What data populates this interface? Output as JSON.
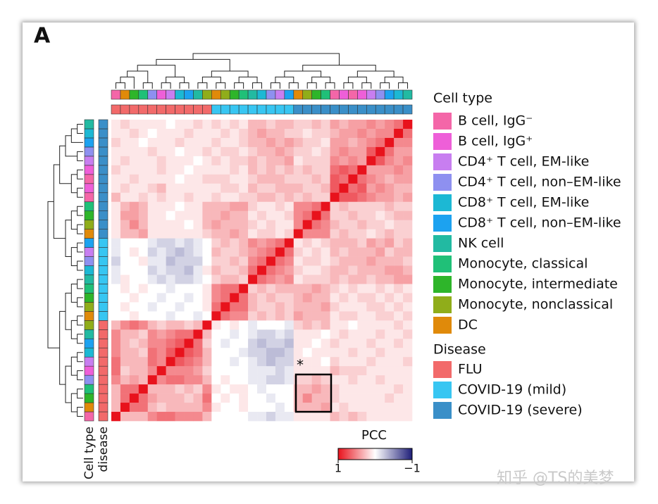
{
  "panel_label": "A",
  "watermark": "知乎 @TS的美梦",
  "chart_data": {
    "type": "heatmap",
    "samples": [
      {
        "cell_type": "B cell, IgG⁻",
        "disease": "FLU"
      },
      {
        "cell_type": "DC",
        "disease": "FLU"
      },
      {
        "cell_type": "Monocyte, intermediate",
        "disease": "FLU"
      },
      {
        "cell_type": "Monocyte, classical",
        "disease": "FLU"
      },
      {
        "cell_type": "CD4⁺ T cell, non–EM-like",
        "disease": "FLU"
      },
      {
        "cell_type": "B cell, IgG⁺",
        "disease": "FLU"
      },
      {
        "cell_type": "CD4⁺ T cell, EM-like",
        "disease": "FLU"
      },
      {
        "cell_type": "CD8⁺ T cell, EM-like",
        "disease": "FLU"
      },
      {
        "cell_type": "CD8⁺ T cell, non–EM-like",
        "disease": "FLU"
      },
      {
        "cell_type": "NK cell",
        "disease": "FLU"
      },
      {
        "cell_type": "Monocyte, nonclassical",
        "disease": "FLU"
      },
      {
        "cell_type": "DC",
        "disease": "COVID-19 (mild)"
      },
      {
        "cell_type": "Monocyte, nonclassical",
        "disease": "COVID-19 (mild)"
      },
      {
        "cell_type": "Monocyte, intermediate",
        "disease": "COVID-19 (mild)"
      },
      {
        "cell_type": "Monocyte, classical",
        "disease": "COVID-19 (mild)"
      },
      {
        "cell_type": "NK cell",
        "disease": "COVID-19 (mild)"
      },
      {
        "cell_type": "CD8⁺ T cell, EM-like",
        "disease": "COVID-19 (mild)"
      },
      {
        "cell_type": "CD4⁺ T cell, non–EM-like",
        "disease": "COVID-19 (mild)"
      },
      {
        "cell_type": "CD4⁺ T cell, EM-like",
        "disease": "COVID-19 (mild)"
      },
      {
        "cell_type": "CD8⁺ T cell, non–EM-like",
        "disease": "COVID-19 (mild)"
      },
      {
        "cell_type": "DC",
        "disease": "COVID-19 (severe)"
      },
      {
        "cell_type": "Monocyte, nonclassical",
        "disease": "COVID-19 (severe)"
      },
      {
        "cell_type": "Monocyte, intermediate",
        "disease": "COVID-19 (severe)"
      },
      {
        "cell_type": "Monocyte, classical",
        "disease": "COVID-19 (severe)"
      },
      {
        "cell_type": "B cell, IgG⁻",
        "disease": "COVID-19 (severe)"
      },
      {
        "cell_type": "B cell, IgG⁺",
        "disease": "COVID-19 (severe)"
      },
      {
        "cell_type": "B cell, IgG⁻",
        "disease": "COVID-19 (severe)"
      },
      {
        "cell_type": "B cell, IgG⁺",
        "disease": "COVID-19 (severe)"
      },
      {
        "cell_type": "CD4⁺ T cell, EM-like",
        "disease": "COVID-19 (severe)"
      },
      {
        "cell_type": "CD4⁺ T cell, non–EM-like",
        "disease": "COVID-19 (severe)"
      },
      {
        "cell_type": "CD8⁺ T cell, non–EM-like",
        "disease": "COVID-19 (severe)"
      },
      {
        "cell_type": "CD8⁺ T cell, EM-like",
        "disease": "COVID-19 (severe)"
      },
      {
        "cell_type": "NK cell",
        "disease": "COVID-19 (severe)"
      }
    ],
    "values": [
      [
        0.1,
        0.2,
        0.1,
        0.1,
        0.1,
        0.1,
        0,
        0.1,
        0.1,
        0.2,
        0.1,
        0.2,
        0.1,
        0.2,
        0.1,
        0.3,
        0.3,
        0.2,
        0.3,
        0.3,
        0.2,
        0.2,
        0.3,
        0.2,
        0.4,
        0.3,
        0.4,
        0.4,
        0.5,
        0.4,
        0.5,
        0.6,
        1
      ],
      [
        0.1,
        0.1,
        0.2,
        0.1,
        0,
        0.1,
        0.1,
        0.1,
        0.2,
        0.1,
        0.1,
        0.1,
        0.2,
        0.1,
        0.2,
        0.3,
        0.4,
        0.3,
        0.3,
        0.2,
        0.2,
        0.1,
        0.2,
        0.2,
        0.3,
        0.4,
        0.4,
        0.5,
        0.4,
        0.5,
        0.5,
        1,
        0.6
      ],
      [
        0.2,
        0.1,
        0.1,
        0,
        0.1,
        0.1,
        0.1,
        0.2,
        0.1,
        0.1,
        0.1,
        0.2,
        0.1,
        0.1,
        0.2,
        0.3,
        0.3,
        0.4,
        0.3,
        0.4,
        0.3,
        0.2,
        0.2,
        0.1,
        0.4,
        0.4,
        0.3,
        0.4,
        0.5,
        0.6,
        1,
        0.5,
        0.5
      ],
      [
        0.1,
        0.1,
        0.1,
        0.1,
        0.2,
        0.1,
        0.1,
        0,
        0.1,
        0.1,
        0.2,
        0.1,
        0.2,
        0.2,
        0.1,
        0.2,
        0.3,
        0.3,
        0.4,
        0.3,
        0.2,
        0.2,
        0.1,
        0.2,
        0.4,
        0.5,
        0.4,
        0.4,
        0.7,
        1,
        0.6,
        0.4,
        0.4
      ],
      [
        0.1,
        0.2,
        0.1,
        0.1,
        0.1,
        0.2,
        0.1,
        0.1,
        0.1,
        0,
        0.1,
        0.2,
        0.1,
        0.2,
        0.2,
        0.3,
        0.2,
        0.3,
        0.3,
        0.4,
        0.1,
        0.2,
        0.2,
        0.2,
        0.5,
        0.4,
        0.5,
        0.4,
        1,
        0.7,
        0.5,
        0.4,
        0.5
      ],
      [
        0.2,
        0.1,
        0.1,
        0.1,
        0.1,
        0.2,
        0.1,
        0.1,
        0,
        0.1,
        0.1,
        0.1,
        0.1,
        0.2,
        0.1,
        0.3,
        0.2,
        0.3,
        0.2,
        0.3,
        0.2,
        0.3,
        0.2,
        0.2,
        0.6,
        0.7,
        0.6,
        1,
        0.4,
        0.4,
        0.4,
        0.5,
        0.4
      ],
      [
        0.1,
        0.1,
        0.2,
        0.1,
        0.1,
        0.1,
        0.1,
        0,
        0.1,
        0.1,
        0.2,
        0.2,
        0.2,
        0.1,
        0.1,
        0.2,
        0.3,
        0.3,
        0.3,
        0.2,
        0.2,
        0.2,
        0.3,
        0.2,
        0.7,
        0.6,
        1,
        0.6,
        0.5,
        0.4,
        0.3,
        0.4,
        0.4
      ],
      [
        0.1,
        0.2,
        0.1,
        0.1,
        0.2,
        0.3,
        0.1,
        0.1,
        0.1,
        0.1,
        0.1,
        0.1,
        0.2,
        0.2,
        0.1,
        0.3,
        0.2,
        0.2,
        0.3,
        0.3,
        0.3,
        0.2,
        0.2,
        0.3,
        0.7,
        1,
        0.6,
        0.7,
        0.4,
        0.5,
        0.4,
        0.3,
        0.3
      ],
      [
        0.3,
        0.1,
        0.1,
        0.2,
        0.1,
        0.2,
        0.1,
        0.1,
        0.2,
        0.1,
        0.1,
        0.2,
        0.1,
        0.1,
        0.2,
        0.2,
        0.3,
        0.3,
        0.2,
        0.3,
        0.2,
        0.3,
        0.2,
        0.2,
        1,
        0.7,
        0.7,
        0.6,
        0.5,
        0.4,
        0.4,
        0.3,
        0.4
      ],
      [
        0.1,
        0.3,
        0.4,
        0.3,
        0.1,
        0.1,
        0.1,
        0,
        0.1,
        0.1,
        0.3,
        0.3,
        0.3,
        0.4,
        0.4,
        0.2,
        0.1,
        0.1,
        0.2,
        0.1,
        0.5,
        0.5,
        0.6,
        1,
        0.2,
        0.3,
        0.2,
        0.2,
        0.2,
        0.2,
        0.3,
        0.2,
        0.2
      ],
      [
        0.1,
        0.4,
        0.4,
        0.3,
        0.1,
        0.1,
        0,
        0.1,
        0.1,
        0.1,
        0.3,
        0.3,
        0.4,
        0.3,
        0.3,
        0.1,
        0.2,
        0.1,
        0.1,
        0.2,
        0.5,
        0.6,
        1,
        0.6,
        0.2,
        0.2,
        0.3,
        0.2,
        0.2,
        0.1,
        0.2,
        0.3,
        0.3
      ],
      [
        0.1,
        0.3,
        0.5,
        0.3,
        0.1,
        0.1,
        0.1,
        0.1,
        0,
        0.1,
        0.3,
        0.4,
        0.3,
        0.3,
        0.3,
        0.2,
        0.1,
        0.2,
        0.1,
        0.1,
        0.5,
        1,
        0.6,
        0.5,
        0.3,
        0.2,
        0.2,
        0.3,
        0.2,
        0.2,
        0.1,
        0.2,
        0.2
      ],
      [
        0.1,
        0.3,
        0.3,
        0.4,
        0.1,
        0.1,
        0.1,
        0.1,
        0.1,
        0.1,
        0.2,
        0.3,
        0.3,
        0.4,
        0.3,
        0.1,
        0.2,
        0.2,
        0.1,
        0.2,
        1,
        0.5,
        0.5,
        0.5,
        0.2,
        0.3,
        0.2,
        0.2,
        0.1,
        0.2,
        0.3,
        0.2,
        0.2
      ],
      [
        -0.1,
        0,
        0,
        0,
        -0.1,
        -0.2,
        -0.2,
        -0.1,
        -0.2,
        -0.1,
        0,
        0.2,
        0.3,
        0.2,
        0.3,
        0.5,
        0.4,
        0.5,
        0.6,
        1,
        0.1,
        0.2,
        0.1,
        0.2,
        0.3,
        0.3,
        0.3,
        0.2,
        0.4,
        0.3,
        0.4,
        0.2,
        0.3
      ],
      [
        -0.1,
        0,
        0.1,
        0,
        -0.2,
        -0.1,
        -0.2,
        -0.3,
        -0.2,
        -0.1,
        0,
        0.3,
        0.2,
        0.2,
        0.3,
        0.4,
        0.5,
        0.6,
        1,
        0.6,
        0.2,
        0.1,
        0.2,
        0.1,
        0.3,
        0.2,
        0.3,
        0.3,
        0.3,
        0.4,
        0.2,
        0.3,
        0.3
      ],
      [
        -0.2,
        0,
        0,
        0.1,
        -0.1,
        -0.1,
        -0.3,
        -0.2,
        -0.2,
        -0.2,
        0,
        0.2,
        0.2,
        0.3,
        0.2,
        0.5,
        0.6,
        1,
        0.6,
        0.5,
        0.1,
        0.2,
        0.2,
        0.1,
        0.2,
        0.3,
        0.3,
        0.3,
        0.4,
        0.3,
        0.3,
        0.3,
        0.2
      ],
      [
        -0.1,
        0,
        0,
        0,
        -0.2,
        -0.1,
        -0.2,
        -0.2,
        -0.3,
        -0.1,
        0.1,
        0.3,
        0.2,
        0.2,
        0.3,
        0.6,
        1,
        0.6,
        0.5,
        0.4,
        0.2,
        0.1,
        0.1,
        0.2,
        0.3,
        0.3,
        0.2,
        0.3,
        0.3,
        0.3,
        0.4,
        0.4,
        0.3
      ],
      [
        -0.1,
        0.1,
        0,
        0,
        -0.1,
        -0.2,
        -0.1,
        -0.2,
        -0.2,
        -0.1,
        0,
        0.2,
        0.3,
        0.3,
        0.2,
        1,
        0.6,
        0.5,
        0.4,
        0.5,
        0.1,
        0.2,
        0.2,
        0.2,
        0.3,
        0.2,
        0.3,
        0.3,
        0.2,
        0.3,
        0.3,
        0.4,
        0.4
      ],
      [
        0,
        0.1,
        0,
        0.1,
        0,
        0,
        -0.1,
        0,
        0,
        0,
        0.1,
        0.5,
        0.6,
        0.6,
        1,
        0.2,
        0.3,
        0.2,
        0.3,
        0.3,
        0.3,
        0.3,
        0.4,
        0.3,
        0.2,
        0.1,
        0.2,
        0.1,
        0.1,
        0.2,
        0.1,
        0.2,
        0.1
      ],
      [
        0,
        0,
        0.1,
        0,
        0,
        -0.1,
        0,
        0,
        -0.1,
        0,
        0.1,
        0.5,
        0.6,
        1,
        0.6,
        0.3,
        0.2,
        0.3,
        0.2,
        0.2,
        0.3,
        0.4,
        0.3,
        0.3,
        0.1,
        0.2,
        0.1,
        0.2,
        0.2,
        0.1,
        0.2,
        0.1,
        0.2
      ],
      [
        0,
        0.1,
        0,
        0,
        -0.1,
        0,
        0,
        -0.1,
        0,
        0,
        0.1,
        0.6,
        1,
        0.6,
        0.6,
        0.3,
        0.2,
        0.2,
        0.3,
        0.2,
        0.3,
        0.3,
        0.3,
        0.4,
        0.2,
        0.1,
        0.1,
        0.1,
        0.2,
        0.2,
        0.1,
        0.2,
        0.1
      ],
      [
        0,
        0,
        0.1,
        0,
        0,
        0,
        -0.1,
        0,
        0,
        -0.1,
        0,
        1,
        0.6,
        0.5,
        0.5,
        0.2,
        0.3,
        0.2,
        0.3,
        0.2,
        0.4,
        0.3,
        0.3,
        0.3,
        0.1,
        0.2,
        0.2,
        0.1,
        0.1,
        0.2,
        0.2,
        0.1,
        0.2
      ],
      [
        0.3,
        0.5,
        0.6,
        0.5,
        0.3,
        0.2,
        0.3,
        0.3,
        0.2,
        0.3,
        1,
        0.1,
        0,
        0.1,
        0,
        -0.1,
        0,
        0,
        0,
        -0.1,
        0.2,
        0.3,
        0.2,
        0.3,
        0.1,
        0.1,
        0,
        0.1,
        0.1,
        0.1,
        0.1,
        0.2,
        0.1
      ],
      [
        0.5,
        0.3,
        0.3,
        0.2,
        0.5,
        0.4,
        0.5,
        0.6,
        0.6,
        1,
        0.3,
        0,
        0,
        -0.1,
        0,
        -0.1,
        -0.2,
        -0.2,
        -0.1,
        -0.2,
        0.1,
        0.1,
        0.1,
        0,
        0.1,
        0.2,
        0.1,
        0.1,
        0.1,
        0.2,
        0.1,
        0.1,
        0.2
      ],
      [
        0.5,
        0.3,
        0.2,
        0.3,
        0.5,
        0.5,
        0.6,
        0.7,
        1,
        0.6,
        0.2,
        0,
        -0.1,
        0,
        0,
        -0.2,
        -0.3,
        -0.2,
        -0.2,
        -0.3,
        0.1,
        0.1,
        0,
        0.1,
        0.2,
        0.1,
        0.1,
        0.1,
        0.2,
        0.1,
        0.1,
        0.2,
        0.1
      ],
      [
        0.5,
        0.3,
        0.3,
        0.2,
        0.6,
        0.5,
        0.7,
        1,
        0.7,
        0.6,
        0.3,
        0,
        0,
        0,
        -0.1,
        -0.2,
        -0.2,
        -0.3,
        -0.3,
        -0.2,
        0.1,
        0,
        0.1,
        0.1,
        0.1,
        0.1,
        0.2,
        0.1,
        0.1,
        0.2,
        0.1,
        0.1,
        0.1
      ],
      [
        0.6,
        0.3,
        0.3,
        0.3,
        0.6,
        0.5,
        1,
        0.7,
        0.6,
        0.5,
        0.3,
        0,
        0,
        -0.1,
        0,
        -0.1,
        -0.2,
        -0.3,
        -0.2,
        -0.2,
        0.1,
        0.1,
        0.1,
        0,
        0.2,
        0.1,
        0.1,
        0.1,
        0.2,
        0.1,
        0.1,
        0.1,
        0.2
      ],
      [
        0.6,
        0.2,
        0.3,
        0.3,
        0.5,
        1,
        0.5,
        0.5,
        0.5,
        0.4,
        0.2,
        0,
        0,
        0,
        0,
        -0.1,
        -0.1,
        -0.1,
        -0.2,
        -0.1,
        0.1,
        0.1,
        0.1,
        0.1,
        0.3,
        0.2,
        0.2,
        0.2,
        0.1,
        0.1,
        0.1,
        0.1,
        0.1
      ],
      [
        0.5,
        0.3,
        0.4,
        0.3,
        1,
        0.5,
        0.6,
        0.6,
        0.5,
        0.5,
        0.3,
        0,
        0.1,
        0,
        0,
        -0.1,
        -0.1,
        -0.2,
        -0.2,
        -0.1,
        0.2,
        0.2,
        0.3,
        0.2,
        0.1,
        0.1,
        0.2,
        0.1,
        0.1,
        0.2,
        0.1,
        0.1,
        0.1
      ],
      [
        0.3,
        0.6,
        0.6,
        1,
        0.3,
        0.3,
        0.3,
        0.2,
        0.3,
        0.2,
        0.5,
        0.1,
        0,
        0.1,
        0.1,
        0,
        -0.1,
        0,
        0,
        0,
        0.3,
        0.3,
        0.4,
        0.3,
        0.2,
        0.1,
        0.1,
        0.1,
        0.1,
        0.1,
        0.1,
        0.2,
        0.1
      ],
      [
        0.3,
        0.6,
        1,
        0.6,
        0.4,
        0.3,
        0.3,
        0.3,
        0.2,
        0.3,
        0.6,
        0,
        0.1,
        0,
        0.1,
        0,
        0,
        -0.1,
        0,
        0,
        0.3,
        0.5,
        0.3,
        0.3,
        0.2,
        0.1,
        0.1,
        0.1,
        0.1,
        0.1,
        0.2,
        0.1,
        0.1
      ],
      [
        0.3,
        1,
        0.6,
        0.6,
        0.3,
        0.2,
        0.3,
        0.3,
        0.3,
        0.3,
        0.5,
        0.1,
        0,
        0,
        0.1,
        0,
        0,
        0,
        -0.1,
        0,
        0.3,
        0.3,
        0.3,
        0.4,
        0.1,
        0.2,
        0.1,
        0.1,
        0.1,
        0.1,
        0.1,
        0.1,
        0.1
      ],
      [
        1,
        0.3,
        0.3,
        0.3,
        0.5,
        0.6,
        0.6,
        0.5,
        0.5,
        0.5,
        0.3,
        0,
        0,
        0,
        0,
        -0.1,
        -0.1,
        -0.2,
        -0.1,
        -0.1,
        0.1,
        0.1,
        0.1,
        0.1,
        0.3,
        0.2,
        0.3,
        0.2,
        0.1,
        0.1,
        0.1,
        0.1,
        0.1
      ]
    ],
    "colorbar": {
      "title": "PCC",
      "lim": [
        1,
        -1
      ],
      "ticks": [
        1,
        {
          "value": -1,
          "label": "−1"
        }
      ],
      "colors": [
        "#e8121c",
        "#ffffff",
        "#1e1e78"
      ]
    },
    "annotation_bar_labels": [
      "Cell type",
      "disease"
    ],
    "annotation": "*",
    "legend": {
      "cell_type": {
        "title": "Cell type",
        "items": [
          {
            "name": "B cell, IgG⁻",
            "color": "#f466a8"
          },
          {
            "name": "B cell, IgG⁺",
            "color": "#ee5fd8"
          },
          {
            "name": "CD4⁺ T cell, EM-like",
            "color": "#c87ef0"
          },
          {
            "name": "CD4⁺ T cell, non–EM-like",
            "color": "#8e90f0"
          },
          {
            "name": "CD8⁺ T cell, EM-like",
            "color": "#1cb8d4"
          },
          {
            "name": "CD8⁺ T cell, non–EM-like",
            "color": "#1ca2f0"
          },
          {
            "name": "NK cell",
            "color": "#22baa2"
          },
          {
            "name": "Monocyte, classical",
            "color": "#20c078"
          },
          {
            "name": "Monocyte, intermediate",
            "color": "#2eb52a"
          },
          {
            "name": "Monocyte, nonclassical",
            "color": "#90ad1a"
          },
          {
            "name": "DC",
            "color": "#e08a0a"
          }
        ]
      },
      "disease": {
        "title": "Disease",
        "items": [
          {
            "name": "FLU",
            "color": "#f26a6a"
          },
          {
            "name": "COVID-19 (mild)",
            "color": "#38c6f2"
          },
          {
            "name": "COVID-19 (severe)",
            "color": "#3a8fc8"
          }
        ]
      }
    }
  }
}
